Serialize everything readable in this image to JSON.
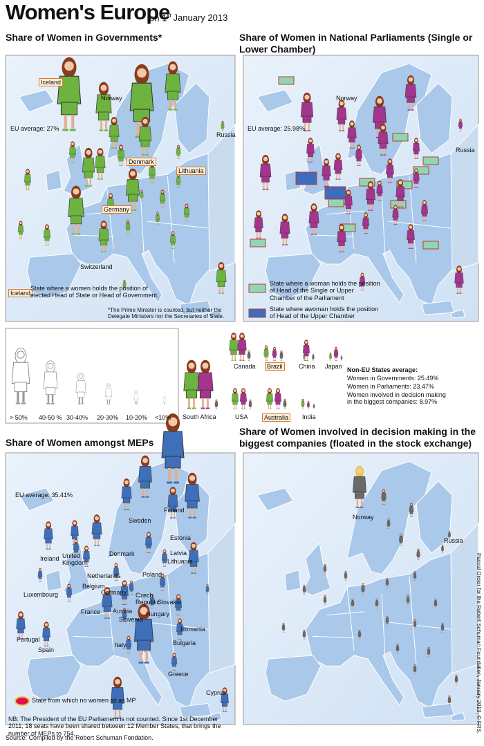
{
  "header": {
    "title": "Women's Europe",
    "date": {
      "prefix": "on 1",
      "sup": "st",
      "suffix": "January 2013"
    }
  },
  "panels": [
    {
      "title": "Share of Women in Governments*",
      "average": "EU average: 27%",
      "labels": [
        "Iceland",
        "Norway",
        "Russia",
        "Denmark",
        "Lithuania",
        "Germany",
        "Switzerland"
      ],
      "legend": [
        {
          "key": "Iceland",
          "text": "State where a women holds the position of elected Head of State or Head of Government."
        }
      ],
      "footnote": "*The Prime Minister is counted, but neither the Delegate Ministers nor the Secretaries of State."
    },
    {
      "title": "Share of Women in National Parliaments (Single or Lower Chamber)",
      "average": "EU average: 25.98%",
      "labels": [
        "Norway",
        "Russia"
      ],
      "legend": [
        {
          "text": "State where a woman holds the position of Head of the Single or Upper Chamber of the Parliament"
        },
        {
          "text": "State where awoman holds the position of Head of the Upper Chamber"
        }
      ]
    },
    {
      "title": "Share of Women amongst MEPs",
      "average": "EU average: 35.41%",
      "labels": [
        "Sweden",
        "Finland",
        "Estonia",
        "Latvia",
        "Lithuania",
        "Denmark",
        "Ireland",
        "United Kingdom",
        "Netherlands",
        "Belgium",
        "Germany",
        "Poland",
        "Luxembourg",
        "France",
        "Czech Republic",
        "Slovakia",
        "Austria",
        "Hungary",
        "Slovenia",
        "Romania",
        "Portugal",
        "Spain",
        "Italy",
        "Bulgaria",
        "Greece",
        "Cyprus"
      ],
      "legend": [
        {
          "text": "State from which no women sit as MP"
        }
      ],
      "footnote": "NB: The President of the EU Parliament is not counted. Since 1st December 2011, 18 seats have been shared between 12 Member States, that brings the number of MEPs to 754."
    },
    {
      "title": "Share of Women involved in decision making in the biggest companies (floated in the stock exchange)",
      "labels": [
        "Norway",
        "Russia"
      ]
    }
  ],
  "scale": {
    "labels": [
      "> 50%",
      "40-50 %",
      "30-40%",
      "20-30%",
      "10-20%",
      "<10%"
    ]
  },
  "non_eu": {
    "countries": [
      "South Africa",
      "USA",
      "Canada",
      "Brazil",
      "Australia",
      "China",
      "Japan",
      "India"
    ],
    "heading": "Non-EU States average:",
    "lines": [
      "Women in Governments: 25.49%",
      "Women in Parliaments: 23.47%",
      "Women involved in decision making in the biggest companies: 8.97%"
    ]
  },
  "credit": "Pascal Orcier for the Robert Schuman Foundation, January 2013, © FRS.",
  "source": "Source: Compiled by the Robert Schuman Fondation."
}
